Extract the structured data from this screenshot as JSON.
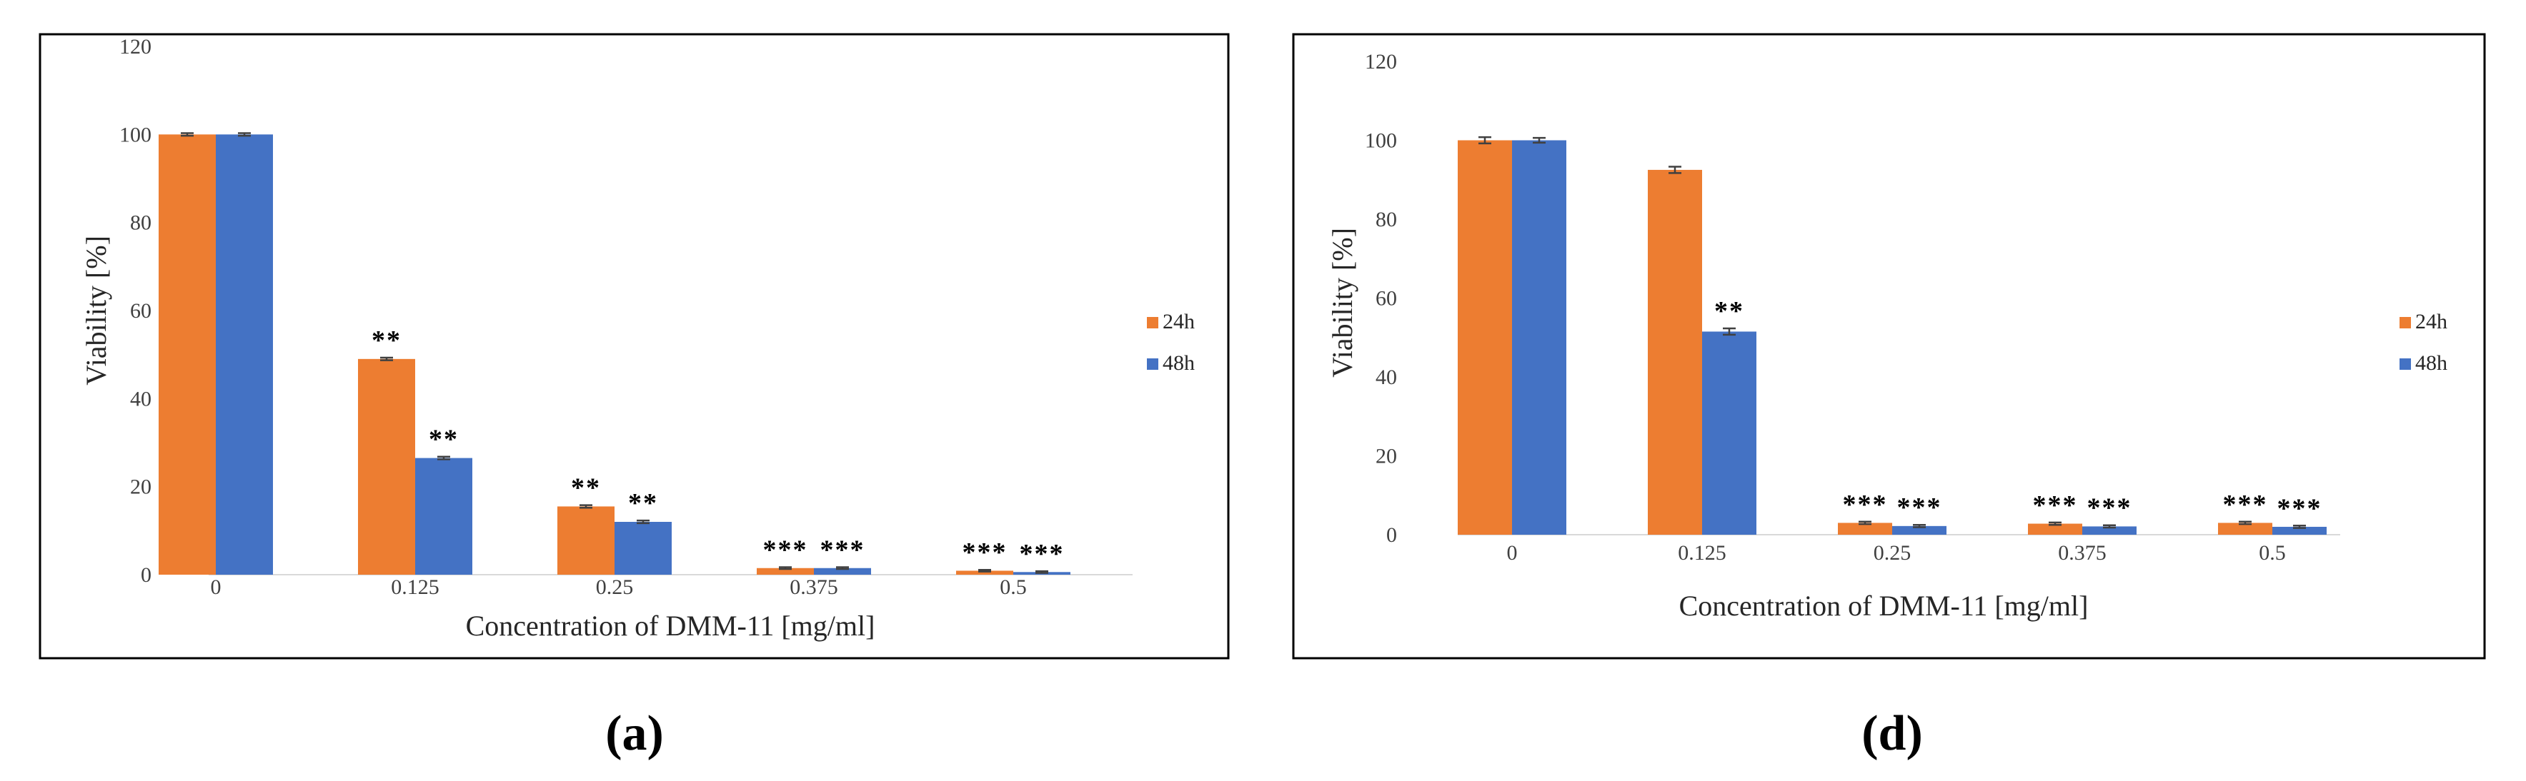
{
  "figure": {
    "colors": {
      "24h": "#ED7D31",
      "48h": "#4472C4",
      "frame": "#000000",
      "text": "#262626"
    },
    "panels": [
      {
        "id": "a",
        "label": "(a)"
      },
      {
        "id": "d",
        "label": "(d)"
      }
    ]
  },
  "chart_data": [
    {
      "type": "bar",
      "panel": "(a)",
      "title": "",
      "xlabel": "Concentration of DMM-11 [mg/ml]",
      "ylabel": "Viability [%]",
      "ylim": [
        0,
        120
      ],
      "yticks": [
        "0",
        "20",
        "40",
        "60",
        "80",
        "100",
        "120"
      ],
      "categories": [
        "0",
        "0.125",
        "0.25",
        "0.375",
        "0.5"
      ],
      "legend": "right",
      "series": [
        {
          "name": "24h",
          "color": "#ED7D31",
          "values": [
            100,
            49,
            15.5,
            1.5,
            0.9
          ],
          "errors": [
            0.3,
            0.3,
            0.3,
            0.2,
            0.2
          ],
          "significance": [
            "",
            "**",
            "**",
            "***",
            "***"
          ]
        },
        {
          "name": "48h",
          "color": "#4472C4",
          "values": [
            100,
            26.5,
            12,
            1.5,
            0.6
          ],
          "errors": [
            0.3,
            0.3,
            0.3,
            0.2,
            0.2
          ],
          "significance": [
            "",
            "**",
            "**",
            "***",
            "***"
          ]
        }
      ]
    },
    {
      "type": "bar",
      "panel": "(d)",
      "title": "",
      "xlabel": "Concentration of DMM-11 [mg/ml]",
      "ylabel": "Viability [%]",
      "ylim": [
        0,
        120
      ],
      "yticks": [
        "0",
        "20",
        "40",
        "60",
        "80",
        "100",
        "120"
      ],
      "categories": [
        "0",
        "0.125",
        "0.25",
        "0.375",
        "0.5"
      ],
      "legend": "right",
      "series": [
        {
          "name": "24h",
          "color": "#ED7D31",
          "values": [
            100,
            92.5,
            3,
            2.8,
            3
          ],
          "errors": [
            0.8,
            0.8,
            0.3,
            0.3,
            0.3
          ],
          "significance": [
            "",
            "",
            "***",
            "***",
            "***"
          ]
        },
        {
          "name": "48h",
          "color": "#4472C4",
          "values": [
            100,
            51.5,
            2.2,
            2.1,
            2
          ],
          "errors": [
            0.6,
            0.8,
            0.3,
            0.3,
            0.3
          ],
          "significance": [
            "",
            "**",
            "***",
            "***",
            "***"
          ]
        }
      ]
    }
  ]
}
